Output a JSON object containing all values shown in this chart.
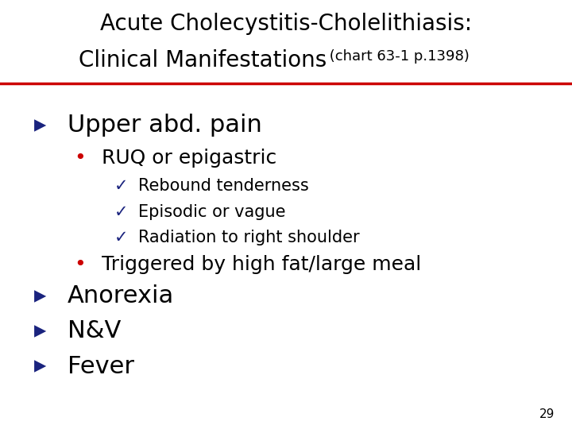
{
  "title_line1": "Acute Cholecystitis-Cholelithiasis:",
  "title_line2_main": "Clinical Manifestations",
  "title_line2_sub": " (chart 63-1 p.1398)",
  "bg_color": "#ffffff",
  "title_color": "#000000",
  "sub_color": "#000000",
  "line_color": "#cc0000",
  "arrow_color": "#1a237e",
  "bullet_color": "#cc0000",
  "check_color": "#1a237e",
  "body_color": "#000000",
  "page_num": "29",
  "items": [
    {
      "level": 0,
      "symbol": "▸",
      "text": "Upper abd. pain",
      "size": 22
    },
    {
      "level": 1,
      "symbol": "•",
      "text": "RUQ or epigastric",
      "size": 18
    },
    {
      "level": 2,
      "symbol": "✓",
      "text": "Rebound tenderness",
      "size": 15
    },
    {
      "level": 2,
      "symbol": "✓",
      "text": "Episodic or vague",
      "size": 15
    },
    {
      "level": 2,
      "symbol": "✓",
      "text": "Radiation to right shoulder",
      "size": 15
    },
    {
      "level": 1,
      "symbol": "•",
      "text": "Triggered by high fat/large meal",
      "size": 18
    },
    {
      "level": 0,
      "symbol": "▸",
      "text": "Anorexia",
      "size": 22
    },
    {
      "level": 0,
      "symbol": "▸",
      "text": "N&V",
      "size": 22
    },
    {
      "level": 0,
      "symbol": "▸",
      "text": "Fever",
      "size": 22
    }
  ]
}
